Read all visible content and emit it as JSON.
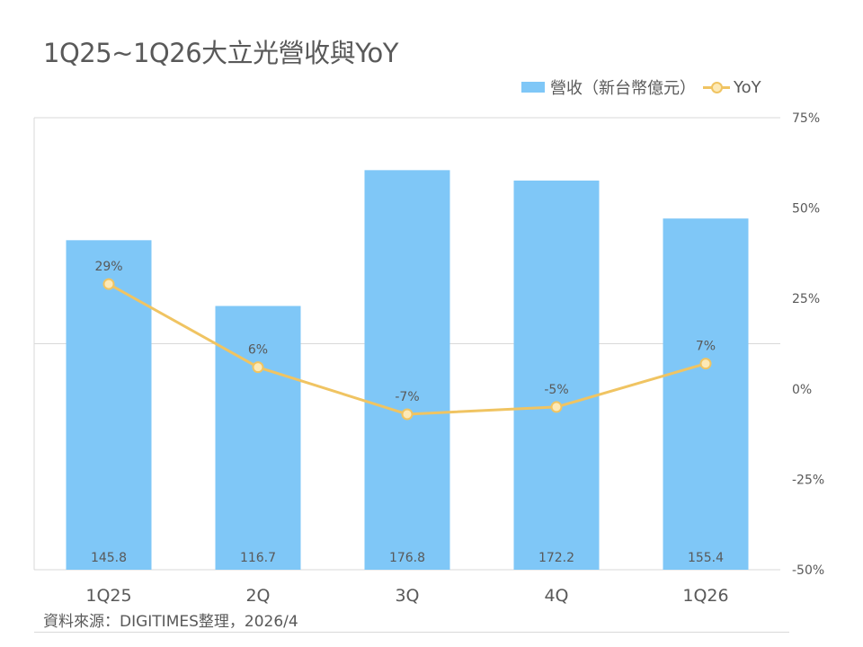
{
  "title": "1Q25~1Q26大立光營收與YoY",
  "legend": {
    "bar_label": "營收（新台幣億元）",
    "line_label": "YoY"
  },
  "source": "資料來源：DIGITIMES整理，2026/4",
  "colors": {
    "bar": "#7fc7f7",
    "line": "#f0c462",
    "marker_fill": "#fde9b6",
    "text": "#595959",
    "grid": "#d9d9d9"
  },
  "chart_data": {
    "type": "bar",
    "categories": [
      "1Q25",
      "2Q",
      "3Q",
      "4Q",
      "1Q26"
    ],
    "series": [
      {
        "name": "營收（新台幣億元）",
        "type": "bar",
        "axis": "left",
        "values": [
          145.8,
          116.7,
          176.8,
          172.2,
          155.4
        ],
        "data_labels": [
          "145.8",
          "116.7",
          "176.8",
          "172.2",
          "155.4"
        ]
      },
      {
        "name": "YoY",
        "type": "line",
        "axis": "right",
        "values": [
          29,
          6,
          -7,
          -5,
          7
        ],
        "data_labels": [
          "29%",
          "6%",
          "-7%",
          "-5%",
          "7%"
        ]
      }
    ],
    "y_left_range": [
      0,
      200
    ],
    "y_right_range": [
      -50,
      75
    ],
    "y_right_ticks": [
      "75%",
      "50%",
      "25%",
      "0%",
      "-25%",
      "-50%"
    ],
    "y_right_tick_values": [
      75,
      50,
      25,
      0,
      -25,
      -50
    ],
    "legend_position": "top-right",
    "grid": false
  }
}
